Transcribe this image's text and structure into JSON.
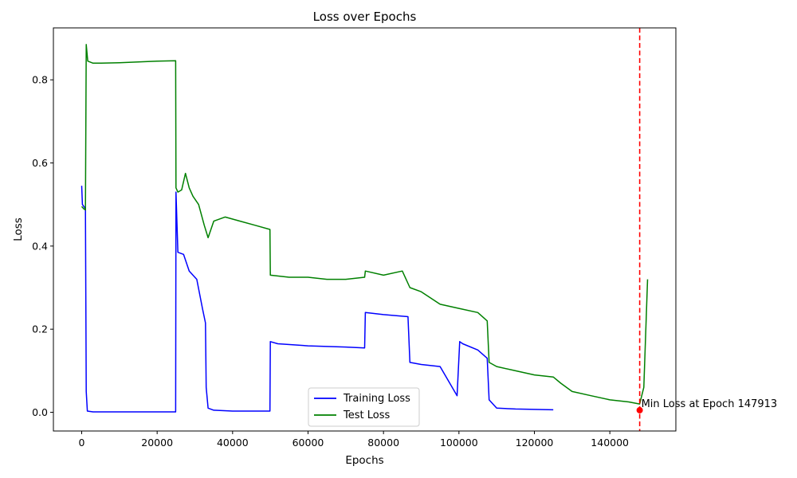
{
  "chart_data": {
    "type": "line",
    "title": "Loss over Epochs",
    "xlabel": "Epochs",
    "ylabel": "Loss",
    "xlim": [
      -7500,
      157500
    ],
    "ylim": [
      -0.045,
      0.925
    ],
    "x_ticks": [
      0,
      20000,
      40000,
      60000,
      80000,
      100000,
      120000,
      140000
    ],
    "x_tick_labels": [
      "0",
      "20000",
      "40000",
      "60000",
      "80000",
      "100000",
      "120000",
      "140000"
    ],
    "y_ticks": [
      0.0,
      0.2,
      0.4,
      0.6,
      0.8
    ],
    "y_tick_labels": [
      "0.0",
      "0.2",
      "0.4",
      "0.6",
      "0.8"
    ],
    "grid": false,
    "legend_position": "bottom-center",
    "series": [
      {
        "name": "Training Loss",
        "color": "#0000ff",
        "x": [
          0,
          200,
          600,
          1000,
          1200,
          1500,
          3000,
          10000,
          20000,
          24900,
          25000,
          25500,
          27000,
          28500,
          30500,
          32000,
          32800,
          33000,
          33500,
          35000,
          40000,
          45000,
          49900,
          50000,
          52000,
          60000,
          70000,
          75000,
          75200,
          80000,
          86500,
          87000,
          90000,
          95000,
          99500,
          100200,
          101000,
          105000,
          107500,
          108000,
          110000,
          115000,
          120000,
          125000
        ],
        "y": [
          0.545,
          0.5,
          0.495,
          0.49,
          0.05,
          0.003,
          0.001,
          0.001,
          0.001,
          0.001,
          0.53,
          0.385,
          0.38,
          0.34,
          0.32,
          0.25,
          0.215,
          0.06,
          0.01,
          0.005,
          0.003,
          0.003,
          0.003,
          0.17,
          0.165,
          0.16,
          0.157,
          0.155,
          0.24,
          0.235,
          0.23,
          0.12,
          0.115,
          0.11,
          0.04,
          0.17,
          0.165,
          0.15,
          0.13,
          0.03,
          0.01,
          0.008,
          0.007,
          0.006
        ]
      },
      {
        "name": "Test Loss",
        "color": "#008000",
        "x": [
          0,
          500,
          800,
          1000,
          1200,
          1600,
          3000,
          5000,
          10000,
          15000,
          20000,
          24900,
          25000,
          25500,
          26500,
          27500,
          28500,
          29500,
          31000,
          32500,
          33500,
          35000,
          38000,
          42000,
          46000,
          49900,
          50000,
          55000,
          60000,
          65000,
          70000,
          75000,
          75200,
          80000,
          85000,
          87000,
          90000,
          95000,
          100000,
          105000,
          107500,
          108000,
          110000,
          115000,
          120000,
          125000,
          127000,
          130000,
          135000,
          140000,
          145000,
          147913,
          149000,
          150000
        ],
        "y": [
          0.495,
          0.49,
          0.488,
          0.487,
          0.885,
          0.845,
          0.84,
          0.84,
          0.841,
          0.843,
          0.845,
          0.846,
          0.54,
          0.53,
          0.535,
          0.575,
          0.54,
          0.52,
          0.5,
          0.45,
          0.42,
          0.46,
          0.47,
          0.46,
          0.45,
          0.44,
          0.33,
          0.325,
          0.325,
          0.32,
          0.32,
          0.325,
          0.34,
          0.33,
          0.34,
          0.3,
          0.29,
          0.26,
          0.25,
          0.24,
          0.22,
          0.12,
          0.11,
          0.1,
          0.09,
          0.085,
          0.07,
          0.05,
          0.04,
          0.03,
          0.025,
          0.02,
          0.06,
          0.32
        ]
      }
    ],
    "annotations": [
      {
        "text": "Min Loss at Epoch 147913",
        "x": 147913,
        "y": 0.005,
        "marker_color": "#ff0000",
        "vline_color": "#ff0000"
      }
    ]
  }
}
